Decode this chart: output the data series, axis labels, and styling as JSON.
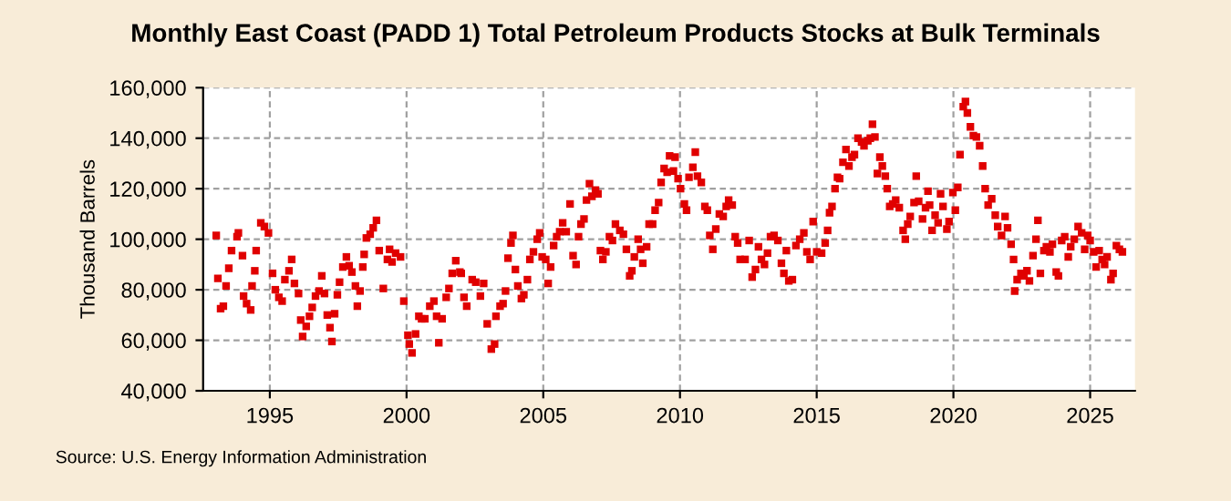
{
  "chart_data": {
    "type": "scatter",
    "title": "Monthly East Coast (PADD 1) Total Petroleum Products Stocks at Bulk Terminals",
    "ylabel": "Thousand Barrels",
    "annotations": [
      "Source: U.S. Energy Information Administration"
    ],
    "marker": "square",
    "grid": true,
    "color": "#e00000",
    "xlim": [
      1992.56,
      2026.64
    ],
    "xticks": [
      1995,
      2000,
      2005,
      2010,
      2015,
      2020,
      2025
    ],
    "ylim": [
      40000,
      160000
    ],
    "yticks": [
      {
        "value": 40000,
        "label": "40,000"
      },
      {
        "value": 60000,
        "label": "60,000"
      },
      {
        "value": 80000,
        "label": "80,000"
      },
      {
        "value": 100000,
        "label": "100,000"
      },
      {
        "value": 120000,
        "label": "120,000"
      },
      {
        "value": 140000,
        "label": "140,000"
      },
      {
        "value": 160000,
        "label": "160,000"
      }
    ],
    "x": [
      1993.04,
      1993.1,
      1993.2,
      1993.3,
      1993.4,
      1993.5,
      1993.6,
      1993.8,
      1993.85,
      1994.0,
      1994.04,
      1994.15,
      1994.3,
      1994.35,
      1994.45,
      1994.5,
      1994.67,
      1994.8,
      1994.95,
      1995.1,
      1995.2,
      1995.33,
      1995.45,
      1995.55,
      1995.7,
      1995.8,
      1995.9,
      1996.05,
      1996.13,
      1996.2,
      1996.33,
      1996.45,
      1996.55,
      1996.67,
      1996.8,
      1996.9,
      1997.0,
      1997.1,
      1997.2,
      1997.27,
      1997.37,
      1997.47,
      1997.55,
      1997.67,
      1997.8,
      1997.9,
      1998.0,
      1998.13,
      1998.2,
      1998.3,
      1998.4,
      1998.45,
      1998.53,
      1998.67,
      1998.78,
      1998.9,
      1999.0,
      1999.15,
      1999.3,
      1999.38,
      1999.47,
      1999.6,
      1999.78,
      1999.9,
      2000.05,
      2000.1,
      2000.2,
      2000.33,
      2000.45,
      2000.55,
      2000.67,
      2000.85,
      2001.0,
      2001.1,
      2001.18,
      2001.3,
      2001.45,
      2001.55,
      2001.67,
      2001.8,
      2001.95,
      2002.0,
      2002.1,
      2002.2,
      2002.4,
      2002.53,
      2002.7,
      2002.82,
      2002.95,
      2003.1,
      2003.22,
      2003.27,
      2003.42,
      2003.53,
      2003.62,
      2003.71,
      2003.82,
      2003.89,
      2003.98,
      2004.07,
      2004.2,
      2004.29,
      2004.42,
      2004.51,
      2004.64,
      2004.78,
      2004.87,
      2004.96,
      2005.09,
      2005.18,
      2005.27,
      2005.38,
      2005.49,
      2005.6,
      2005.71,
      2005.84,
      2005.98,
      2006.09,
      2006.2,
      2006.29,
      2006.38,
      2006.49,
      2006.58,
      2006.69,
      2006.78,
      2006.91,
      2007.0,
      2007.09,
      2007.18,
      2007.29,
      2007.42,
      2007.53,
      2007.64,
      2007.8,
      2007.93,
      2008.04,
      2008.16,
      2008.24,
      2008.33,
      2008.47,
      2008.56,
      2008.64,
      2008.78,
      2008.87,
      2009.0,
      2009.09,
      2009.22,
      2009.31,
      2009.42,
      2009.53,
      2009.62,
      2009.76,
      2009.82,
      2009.93,
      2010.02,
      2010.16,
      2010.24,
      2010.33,
      2010.47,
      2010.56,
      2010.64,
      2010.78,
      2010.91,
      2011.0,
      2011.09,
      2011.2,
      2011.31,
      2011.44,
      2011.58,
      2011.69,
      2011.78,
      2011.91,
      2012.02,
      2012.11,
      2012.2,
      2012.38,
      2012.53,
      2012.64,
      2012.76,
      2012.87,
      2012.98,
      2013.09,
      2013.2,
      2013.31,
      2013.44,
      2013.58,
      2013.71,
      2013.8,
      2013.89,
      2013.98,
      2014.11,
      2014.24,
      2014.38,
      2014.53,
      2014.64,
      2014.76,
      2014.87,
      2015.0,
      2015.18,
      2015.31,
      2015.4,
      2015.47,
      2015.56,
      2015.67,
      2015.76,
      2015.84,
      2015.96,
      2016.07,
      2016.18,
      2016.29,
      2016.38,
      2016.51,
      2016.64,
      2016.73,
      2016.87,
      2016.96,
      2017.04,
      2017.13,
      2017.22,
      2017.31,
      2017.4,
      2017.51,
      2017.58,
      2017.67,
      2017.78,
      2017.89,
      2018.02,
      2018.16,
      2018.24,
      2018.33,
      2018.42,
      2018.56,
      2018.64,
      2018.73,
      2018.87,
      2018.98,
      2019.07,
      2019.13,
      2019.22,
      2019.33,
      2019.44,
      2019.53,
      2019.62,
      2019.76,
      2019.84,
      2019.98,
      2020.07,
      2020.16,
      2020.24,
      2020.36,
      2020.44,
      2020.51,
      2020.62,
      2020.73,
      2020.84,
      2020.96,
      2021.07,
      2021.16,
      2021.27,
      2021.4,
      2021.53,
      2021.62,
      2021.76,
      2021.89,
      2021.98,
      2022.11,
      2022.2,
      2022.24,
      2022.33,
      2022.47,
      2022.58,
      2022.69,
      2022.78,
      2022.91,
      2023.02,
      2023.09,
      2023.18,
      2023.31,
      2023.4,
      2023.53,
      2023.62,
      2023.76,
      2023.84,
      2023.96,
      2024.07,
      2024.2,
      2024.29,
      2024.42,
      2024.56,
      2024.69,
      2024.8,
      2024.91,
      2025.0,
      2025.13,
      2025.22,
      2025.33,
      2025.44,
      2025.53,
      2025.62,
      2025.76,
      2025.84,
      2025.96,
      2026.07,
      2026.18
    ],
    "values": [
      101500,
      84500,
      72500,
      73500,
      81500,
      88500,
      95500,
      101000,
      102500,
      93500,
      77500,
      74500,
      72000,
      81500,
      87500,
      95500,
      106500,
      105000,
      102500,
      86500,
      80000,
      77000,
      75500,
      84000,
      87500,
      92000,
      82500,
      78500,
      68000,
      61500,
      65500,
      69500,
      73000,
      77500,
      79500,
      85500,
      78500,
      70000,
      65000,
      59500,
      70500,
      78000,
      83000,
      89000,
      93000,
      89500,
      87000,
      81500,
      73500,
      79500,
      89000,
      94000,
      100500,
      102000,
      104500,
      107500,
      95500,
      80500,
      92000,
      96000,
      91000,
      94500,
      93000,
      75500,
      62000,
      58500,
      55000,
      62500,
      69500,
      68500,
      68500,
      73500,
      75500,
      69500,
      59000,
      68500,
      77000,
      80500,
      86500,
      91500,
      87000,
      86500,
      77000,
      73500,
      84000,
      83000,
      77500,
      82500,
      66500,
      56500,
      58500,
      69500,
      73500,
      74500,
      79500,
      92500,
      98500,
      101500,
      88000,
      81500,
      76500,
      78000,
      84000,
      92000,
      95000,
      100000,
      102500,
      93000,
      92000,
      82500,
      89000,
      97500,
      101000,
      103000,
      106500,
      103000,
      114000,
      93500,
      90000,
      101000,
      106000,
      108000,
      115500,
      122000,
      117000,
      119500,
      118000,
      95500,
      92000,
      95000,
      101000,
      99500,
      106000,
      103500,
      102000,
      96000,
      85500,
      87500,
      93000,
      100000,
      96000,
      90500,
      97000,
      106000,
      106000,
      111500,
      114500,
      122500,
      128000,
      126500,
      133000,
      127000,
      132500,
      124000,
      120000,
      114000,
      111500,
      124500,
      128500,
      134500,
      125000,
      122500,
      113000,
      111500,
      101500,
      96000,
      104000,
      110000,
      109000,
      113000,
      115500,
      113500,
      101000,
      98500,
      92000,
      92000,
      99500,
      85000,
      88000,
      97000,
      92000,
      90000,
      94500,
      101000,
      101500,
      99500,
      90500,
      86500,
      95500,
      83500,
      84000,
      97500,
      100000,
      102500,
      95000,
      92000,
      107000,
      95000,
      94500,
      98500,
      103500,
      110500,
      113000,
      120000,
      124500,
      124000,
      130500,
      135500,
      129000,
      132500,
      133500,
      140000,
      138500,
      137000,
      139000,
      140000,
      145500,
      140500,
      126000,
      132500,
      129000,
      125000,
      120000,
      113000,
      114000,
      115500,
      112500,
      103500,
      100000,
      106000,
      109000,
      114500,
      125000,
      115000,
      108000,
      112500,
      119000,
      113500,
      103500,
      109500,
      106500,
      118000,
      113000,
      104000,
      107000,
      118500,
      111500,
      120500,
      133500,
      152500,
      154500,
      150000,
      144500,
      141000,
      140500,
      137000,
      129000,
      120000,
      113500,
      116000,
      109500,
      105000,
      101500,
      109000,
      104500,
      98000,
      92000,
      79500,
      84000,
      86500,
      85500,
      87500,
      83500,
      93500,
      100000,
      107500,
      86500,
      95500,
      97000,
      95000,
      98000,
      87000,
      85500,
      99500,
      101000,
      93000,
      97000,
      100000,
      105000,
      102500,
      96000,
      101500,
      99500,
      95000,
      89000,
      95500,
      92000,
      90000,
      93000,
      84000,
      86500,
      97500,
      96000,
      95000
    ]
  }
}
